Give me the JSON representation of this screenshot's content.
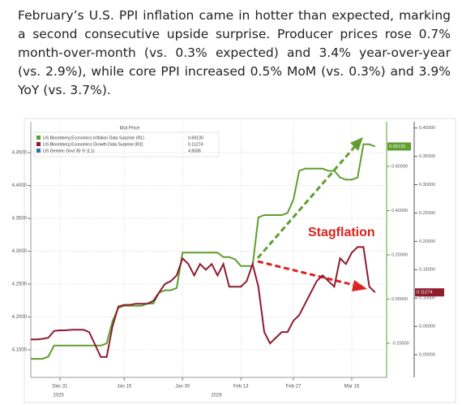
{
  "text": "February’s U.S. PPI inflation came in hotter than expected, marking a second consecutive upside surprise. Producer prices rose 0.7% month-over-month (vs. 0.3% expected) and 3.4% year-over-year (vs. 2.9%), while core PPI increased 0.5% MoM (vs. 0.3%) and 3.9% YoY (vs. 3.7%).",
  "chart_data": {
    "type": "line",
    "header": "Mid Price",
    "annotation": "Stagflation",
    "year_labels": [
      "2025",
      "2026"
    ],
    "grid": true,
    "categories": [
      null,
      null,
      null,
      null,
      null,
      "Dec 31",
      null,
      null,
      null,
      null,
      null,
      null,
      null,
      null,
      null,
      null,
      "Jan 15",
      null,
      null,
      null,
      null,
      null,
      null,
      null,
      null,
      null,
      "Jan 30",
      null,
      null,
      null,
      null,
      null,
      null,
      null,
      null,
      null,
      "Feb 13",
      null,
      null,
      null,
      null,
      null,
      null,
      null,
      null,
      "Feb 27",
      null,
      null,
      null,
      null,
      null,
      null,
      null,
      null,
      null,
      "Mar 16",
      null,
      null,
      null,
      null
    ],
    "series": [
      {
        "name": "US Bloomberg Economics Inflation Data Surprise (R1)",
        "color": "#5f9e2f",
        "axis": "y2",
        "values": [
          -0.27,
          -0.27,
          -0.27,
          -0.26,
          -0.21,
          -0.21,
          -0.21,
          -0.21,
          -0.21,
          -0.21,
          -0.21,
          -0.21,
          -0.21,
          -0.2,
          -0.1,
          -0.04,
          -0.03,
          -0.03,
          -0.03,
          -0.03,
          -0.02,
          -0.02,
          0.03,
          0.04,
          0.04,
          0.05,
          0.21,
          0.21,
          0.21,
          0.21,
          0.21,
          0.21,
          0.21,
          0.19,
          0.19,
          0.18,
          0.15,
          0.15,
          0.15,
          0.37,
          0.38,
          0.38,
          0.38,
          0.38,
          0.39,
          0.45,
          0.58,
          0.59,
          0.59,
          0.59,
          0.59,
          0.58,
          0.58,
          0.55,
          0.54,
          0.54,
          0.55,
          0.7,
          0.7,
          0.69
        ]
      },
      {
        "name": "US Bloomberg Economics Growth Data Surprise (R2)",
        "color": "#8e1b2e",
        "axis": "y3",
        "values": [
          0.027,
          0.027,
          0.028,
          0.03,
          0.042,
          0.043,
          0.043,
          0.044,
          0.044,
          0.044,
          0.04,
          0.018,
          -0.004,
          -0.004,
          0.05,
          0.085,
          0.088,
          0.088,
          0.09,
          0.09,
          0.09,
          0.095,
          0.11,
          0.125,
          0.13,
          0.14,
          0.17,
          0.16,
          0.14,
          0.16,
          0.15,
          0.16,
          0.14,
          0.16,
          0.12,
          0.12,
          0.12,
          0.13,
          0.16,
          0.12,
          0.04,
          0.02,
          0.03,
          0.04,
          0.04,
          0.06,
          0.07,
          0.09,
          0.11,
          0.13,
          0.14,
          0.13,
          0.12,
          0.17,
          0.16,
          0.18,
          0.19,
          0.19,
          0.12,
          0.11
        ]
      },
      {
        "name": "US Generic Govt 30 Yr (L1)",
        "color": "#2e75b6",
        "axis": "y"
      }
    ],
    "legend_values": [
      "0.69130",
      "0.11274",
      "4.9336"
    ],
    "ylim": [
      4.108,
      4.497
    ],
    "yticks": [
      {
        "value": 4.15,
        "label": "4.1500"
      },
      {
        "value": 4.2,
        "label": "4.2000"
      },
      {
        "value": 4.25,
        "label": "4.2500"
      },
      {
        "value": 4.3,
        "label": "4.3000"
      },
      {
        "value": 4.35,
        "label": "4.3500"
      },
      {
        "value": 4.4,
        "label": "4.4000"
      },
      {
        "value": 4.45,
        "label": "4.4500"
      }
    ],
    "y2lim": [
      -0.354,
      0.802
    ],
    "y2ticks": [
      {
        "value": -0.2,
        "label": "-0.20000"
      },
      {
        "value": 0,
        "label": "0.00000"
      },
      {
        "value": 0.2,
        "label": "0.20000"
      },
      {
        "value": 0.4,
        "label": "0.40000"
      },
      {
        "value": 0.6,
        "label": "0.60000"
      }
    ],
    "y3lim": [
      -0.04,
      0.411
    ],
    "y3ticks": [
      {
        "value": 0,
        "label": "0.00000"
      },
      {
        "value": 0.05,
        "label": "0.05000"
      },
      {
        "value": 0.1,
        "label": "0.10000"
      },
      {
        "value": 0.15,
        "label": "0.15000"
      },
      {
        "value": 0.2,
        "label": "0.20000"
      },
      {
        "value": 0.25,
        "label": "0.25000"
      },
      {
        "value": 0.3,
        "label": "0.30000"
      },
      {
        "value": 0.35,
        "label": "0.35000"
      },
      {
        "value": 0.4,
        "label": "0.40000"
      }
    ]
  }
}
